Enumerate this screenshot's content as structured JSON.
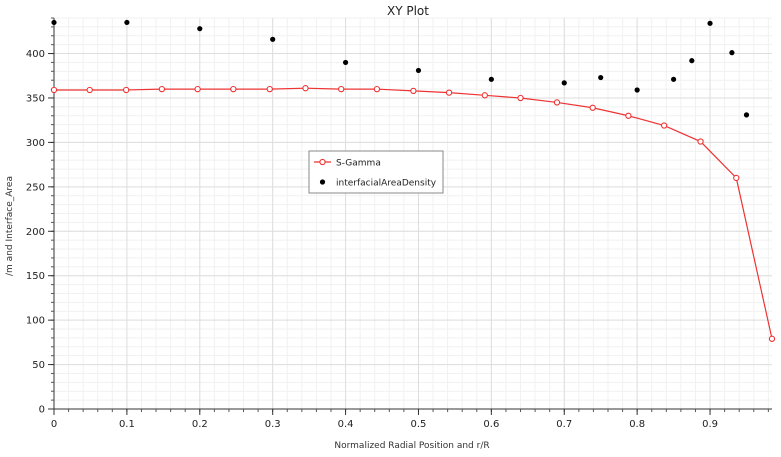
{
  "chart_data": {
    "type": "line",
    "title": "XY Plot",
    "xlabel": "Normalized Radial Position and r/R",
    "ylabel": "/m and Interface_Area",
    "xlim": [
      0,
      0.985
    ],
    "ylim": [
      0,
      440
    ],
    "xticks": [
      0,
      0.1,
      0.2,
      0.3,
      0.4,
      0.5,
      0.6,
      0.7,
      0.8,
      0.9
    ],
    "yticks": [
      0,
      50,
      100,
      150,
      200,
      250,
      300,
      350,
      400
    ],
    "grid": true,
    "legend_position": "center",
    "series": [
      {
        "name": "S-Gamma",
        "style": "line-with-open-circles",
        "color": "#ee3333",
        "x": [
          0,
          0.049,
          0.099,
          0.148,
          0.197,
          0.246,
          0.296,
          0.345,
          0.394,
          0.443,
          0.493,
          0.542,
          0.591,
          0.64,
          0.69,
          0.739,
          0.788,
          0.837,
          0.887,
          0.936,
          0.985
        ],
        "y": [
          359,
          359,
          359,
          360,
          360,
          360,
          360,
          361,
          360,
          360,
          358,
          356,
          353,
          350,
          345,
          339,
          330,
          319,
          301,
          260,
          79
        ]
      },
      {
        "name": "interfacialAreaDensity",
        "style": "scatter",
        "color": "#000000",
        "x": [
          0.0,
          0.1,
          0.2,
          0.3,
          0.4,
          0.5,
          0.6,
          0.7,
          0.75,
          0.8,
          0.85,
          0.875,
          0.9,
          0.93,
          0.95
        ],
        "y": [
          435,
          435,
          428,
          416,
          390,
          381,
          371,
          367,
          373,
          359,
          371,
          392,
          434,
          401,
          331
        ]
      }
    ]
  }
}
